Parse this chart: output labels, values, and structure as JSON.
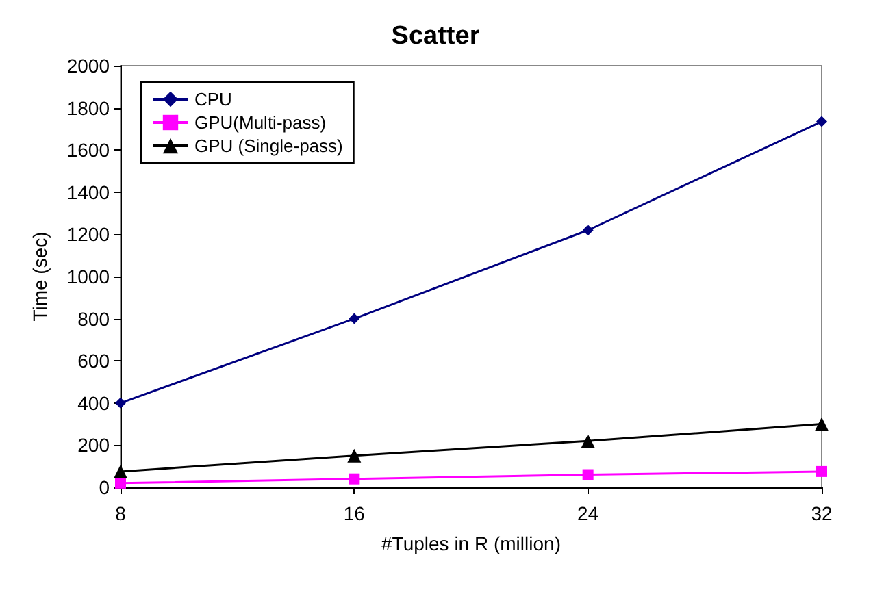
{
  "chart_data": {
    "type": "line",
    "title": "Scatter",
    "xlabel": "#Tuples in R (million)",
    "ylabel": "Time (sec)",
    "x": [
      8,
      16,
      24,
      32
    ],
    "series": [
      {
        "name": "CPU",
        "color": "#000080",
        "marker": "diamond",
        "values": [
          400,
          800,
          1220,
          1735
        ]
      },
      {
        "name": "GPU(Multi-pass)",
        "color": "#ff00ff",
        "marker": "square",
        "values": [
          20,
          40,
          60,
          75
        ]
      },
      {
        "name": "GPU (Single-pass)",
        "color": "#000000",
        "marker": "triangle",
        "values": [
          75,
          150,
          220,
          300
        ]
      }
    ],
    "xlim": [
      8,
      32
    ],
    "xticks": [
      8,
      16,
      24,
      32
    ],
    "ylim": [
      0,
      2000
    ],
    "yticks": [
      0,
      200,
      400,
      600,
      800,
      1000,
      1200,
      1400,
      1600,
      1800,
      2000
    ],
    "legend": "top left",
    "grid": false,
    "line_style": "solid"
  }
}
